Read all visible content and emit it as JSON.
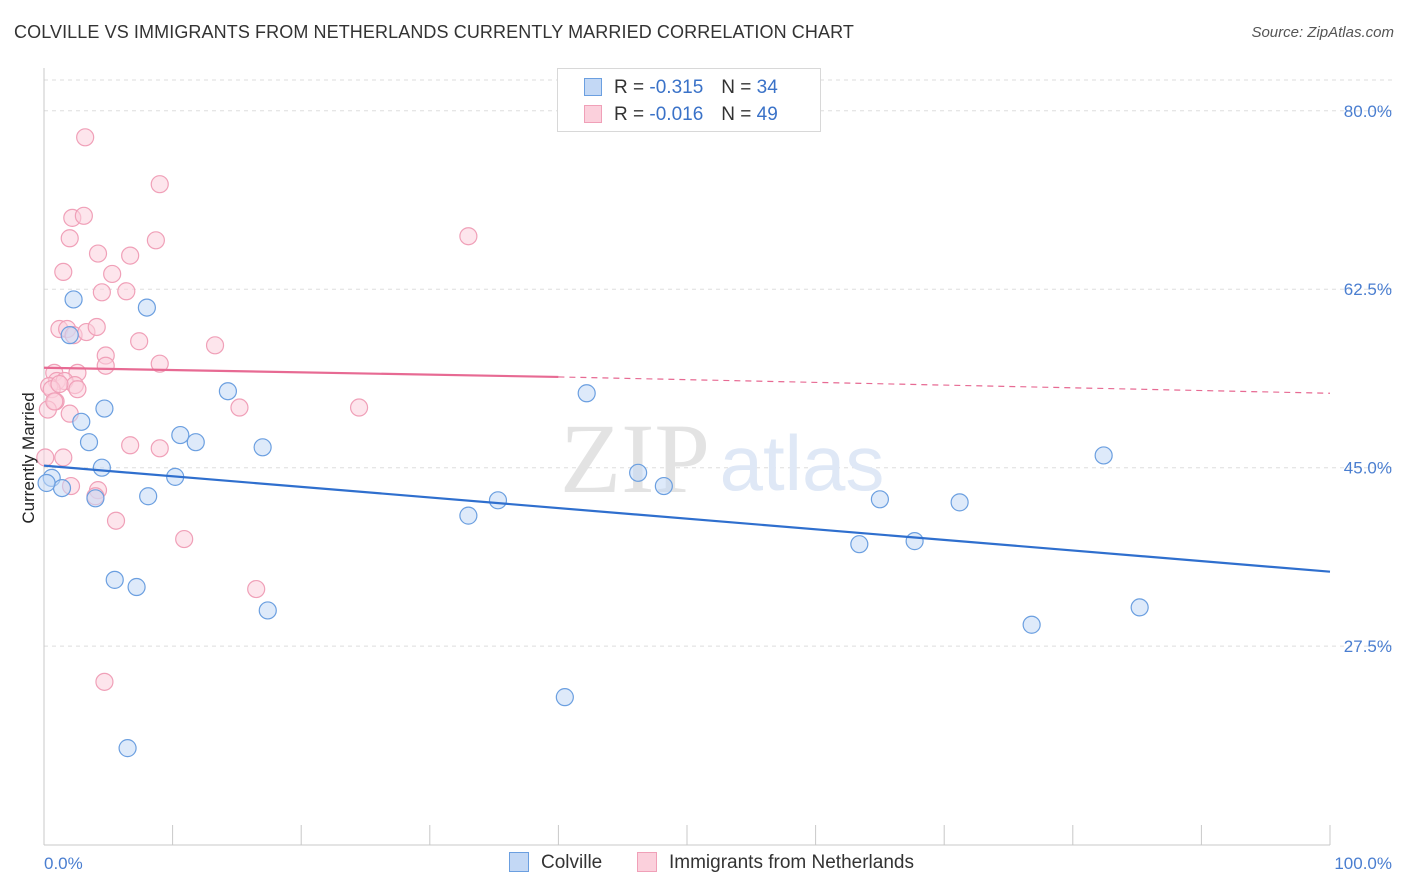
{
  "header": {
    "title": "COLVILLE VS IMMIGRANTS FROM NETHERLANDS CURRENTLY MARRIED CORRELATION CHART",
    "source": "Source: ZipAtlas.com"
  },
  "watermark": {
    "zip": "ZIP",
    "atlas": "atlas"
  },
  "legend": {
    "colville": {
      "r_label": "R =",
      "r_value": "-0.315",
      "n_label": "N =",
      "n_value": "34"
    },
    "netherlands": {
      "r_label": "R =",
      "r_value": "-0.016",
      "n_label": "N =",
      "n_value": "49"
    }
  },
  "bottom_legend": {
    "colville": "Colville",
    "netherlands": "Immigrants from Netherlands"
  },
  "colors": {
    "colville": "#6b9fe0",
    "colville_line": "#2f6fce",
    "netherlands": "#f0a0b8",
    "netherlands_line": "#e76a93",
    "tick": "#4a7ed0"
  },
  "chart_data": {
    "type": "scatter",
    "ylabel": "Currently Married",
    "xlabel": "",
    "xlim": [
      0,
      100
    ],
    "ylim": [
      8,
      84
    ],
    "x_tick_labels": [
      {
        "value": 0,
        "label": "0.0%"
      },
      {
        "value": 100,
        "label": "100.0%"
      }
    ],
    "y_tick_labels": [
      {
        "value": 27.5,
        "label": "27.5%"
      },
      {
        "value": 45,
        "label": "45.0%"
      },
      {
        "value": 62.5,
        "label": "62.5%"
      },
      {
        "value": 80,
        "label": "80.0%"
      }
    ],
    "series": [
      {
        "name": "Colville",
        "points": [
          [
            0.6,
            44
          ],
          [
            1.4,
            43
          ],
          [
            2.3,
            61.5
          ],
          [
            2.0,
            58
          ],
          [
            2.9,
            49.5
          ],
          [
            3.5,
            47.5
          ],
          [
            4.0,
            42
          ],
          [
            4.7,
            50.8
          ],
          [
            4.5,
            45
          ],
          [
            5.5,
            34
          ],
          [
            6.5,
            17.5
          ],
          [
            8.0,
            60.7
          ],
          [
            7.2,
            33.3
          ],
          [
            8.1,
            42.2
          ],
          [
            10.2,
            44.1
          ],
          [
            10.6,
            48.2
          ],
          [
            11.8,
            47.5
          ],
          [
            14.3,
            52.5
          ],
          [
            17.0,
            47
          ],
          [
            17.4,
            31
          ],
          [
            33.0,
            40.3
          ],
          [
            35.3,
            41.8
          ],
          [
            40.5,
            22.5
          ],
          [
            42.2,
            52.3
          ],
          [
            46.2,
            44.5
          ],
          [
            48.2,
            43.2
          ],
          [
            63.4,
            37.5
          ],
          [
            65.0,
            41.9
          ],
          [
            67.7,
            37.8
          ],
          [
            71.2,
            41.6
          ],
          [
            76.8,
            29.6
          ],
          [
            82.4,
            46.2
          ],
          [
            85.2,
            31.3
          ],
          [
            0.2,
            43.5
          ]
        ],
        "trend": {
          "x": [
            0,
            100
          ],
          "y": [
            45.2,
            34.8
          ]
        }
      },
      {
        "name": "Immigrants from Netherlands",
        "points": [
          [
            3.2,
            77.4
          ],
          [
            9.0,
            72.8
          ],
          [
            2.2,
            69.5
          ],
          [
            3.1,
            69.7
          ],
          [
            2.0,
            67.5
          ],
          [
            8.7,
            67.3
          ],
          [
            4.2,
            66
          ],
          [
            6.7,
            65.8
          ],
          [
            1.5,
            64.2
          ],
          [
            5.3,
            64
          ],
          [
            4.5,
            62.2
          ],
          [
            6.4,
            62.3
          ],
          [
            1.2,
            58.6
          ],
          [
            1.8,
            58.6
          ],
          [
            2.3,
            58
          ],
          [
            3.3,
            58.3
          ],
          [
            4.1,
            58.8
          ],
          [
            7.4,
            57.4
          ],
          [
            13.3,
            57
          ],
          [
            4.8,
            56
          ],
          [
            4.8,
            55
          ],
          [
            9.0,
            55.2
          ],
          [
            0.8,
            54.3
          ],
          [
            2.6,
            54.3
          ],
          [
            1.0,
            53.5
          ],
          [
            1.6,
            53.5
          ],
          [
            2.4,
            53.1
          ],
          [
            0.4,
            53
          ],
          [
            2.6,
            52.7
          ],
          [
            0.6,
            52.7
          ],
          [
            0.9,
            51.5
          ],
          [
            2.0,
            50.3
          ],
          [
            0.3,
            50.7
          ],
          [
            15.2,
            50.9
          ],
          [
            24.5,
            50.9
          ],
          [
            33.0,
            67.7
          ],
          [
            6.7,
            47.2
          ],
          [
            9.0,
            46.9
          ],
          [
            0.1,
            46
          ],
          [
            1.5,
            46
          ],
          [
            2.1,
            43.2
          ],
          [
            4.2,
            42.8
          ],
          [
            4.0,
            42.2
          ],
          [
            5.6,
            39.8
          ],
          [
            10.9,
            38
          ],
          [
            16.5,
            33.1
          ],
          [
            4.7,
            24
          ],
          [
            0.8,
            51.5
          ],
          [
            1.2,
            53.2
          ]
        ],
        "trend_solid": {
          "x": [
            0,
            40
          ],
          "y": [
            54.8,
            53.9
          ]
        },
        "trend_dashed": {
          "x": [
            40,
            100
          ],
          "y": [
            53.9,
            52.3
          ]
        }
      }
    ]
  }
}
